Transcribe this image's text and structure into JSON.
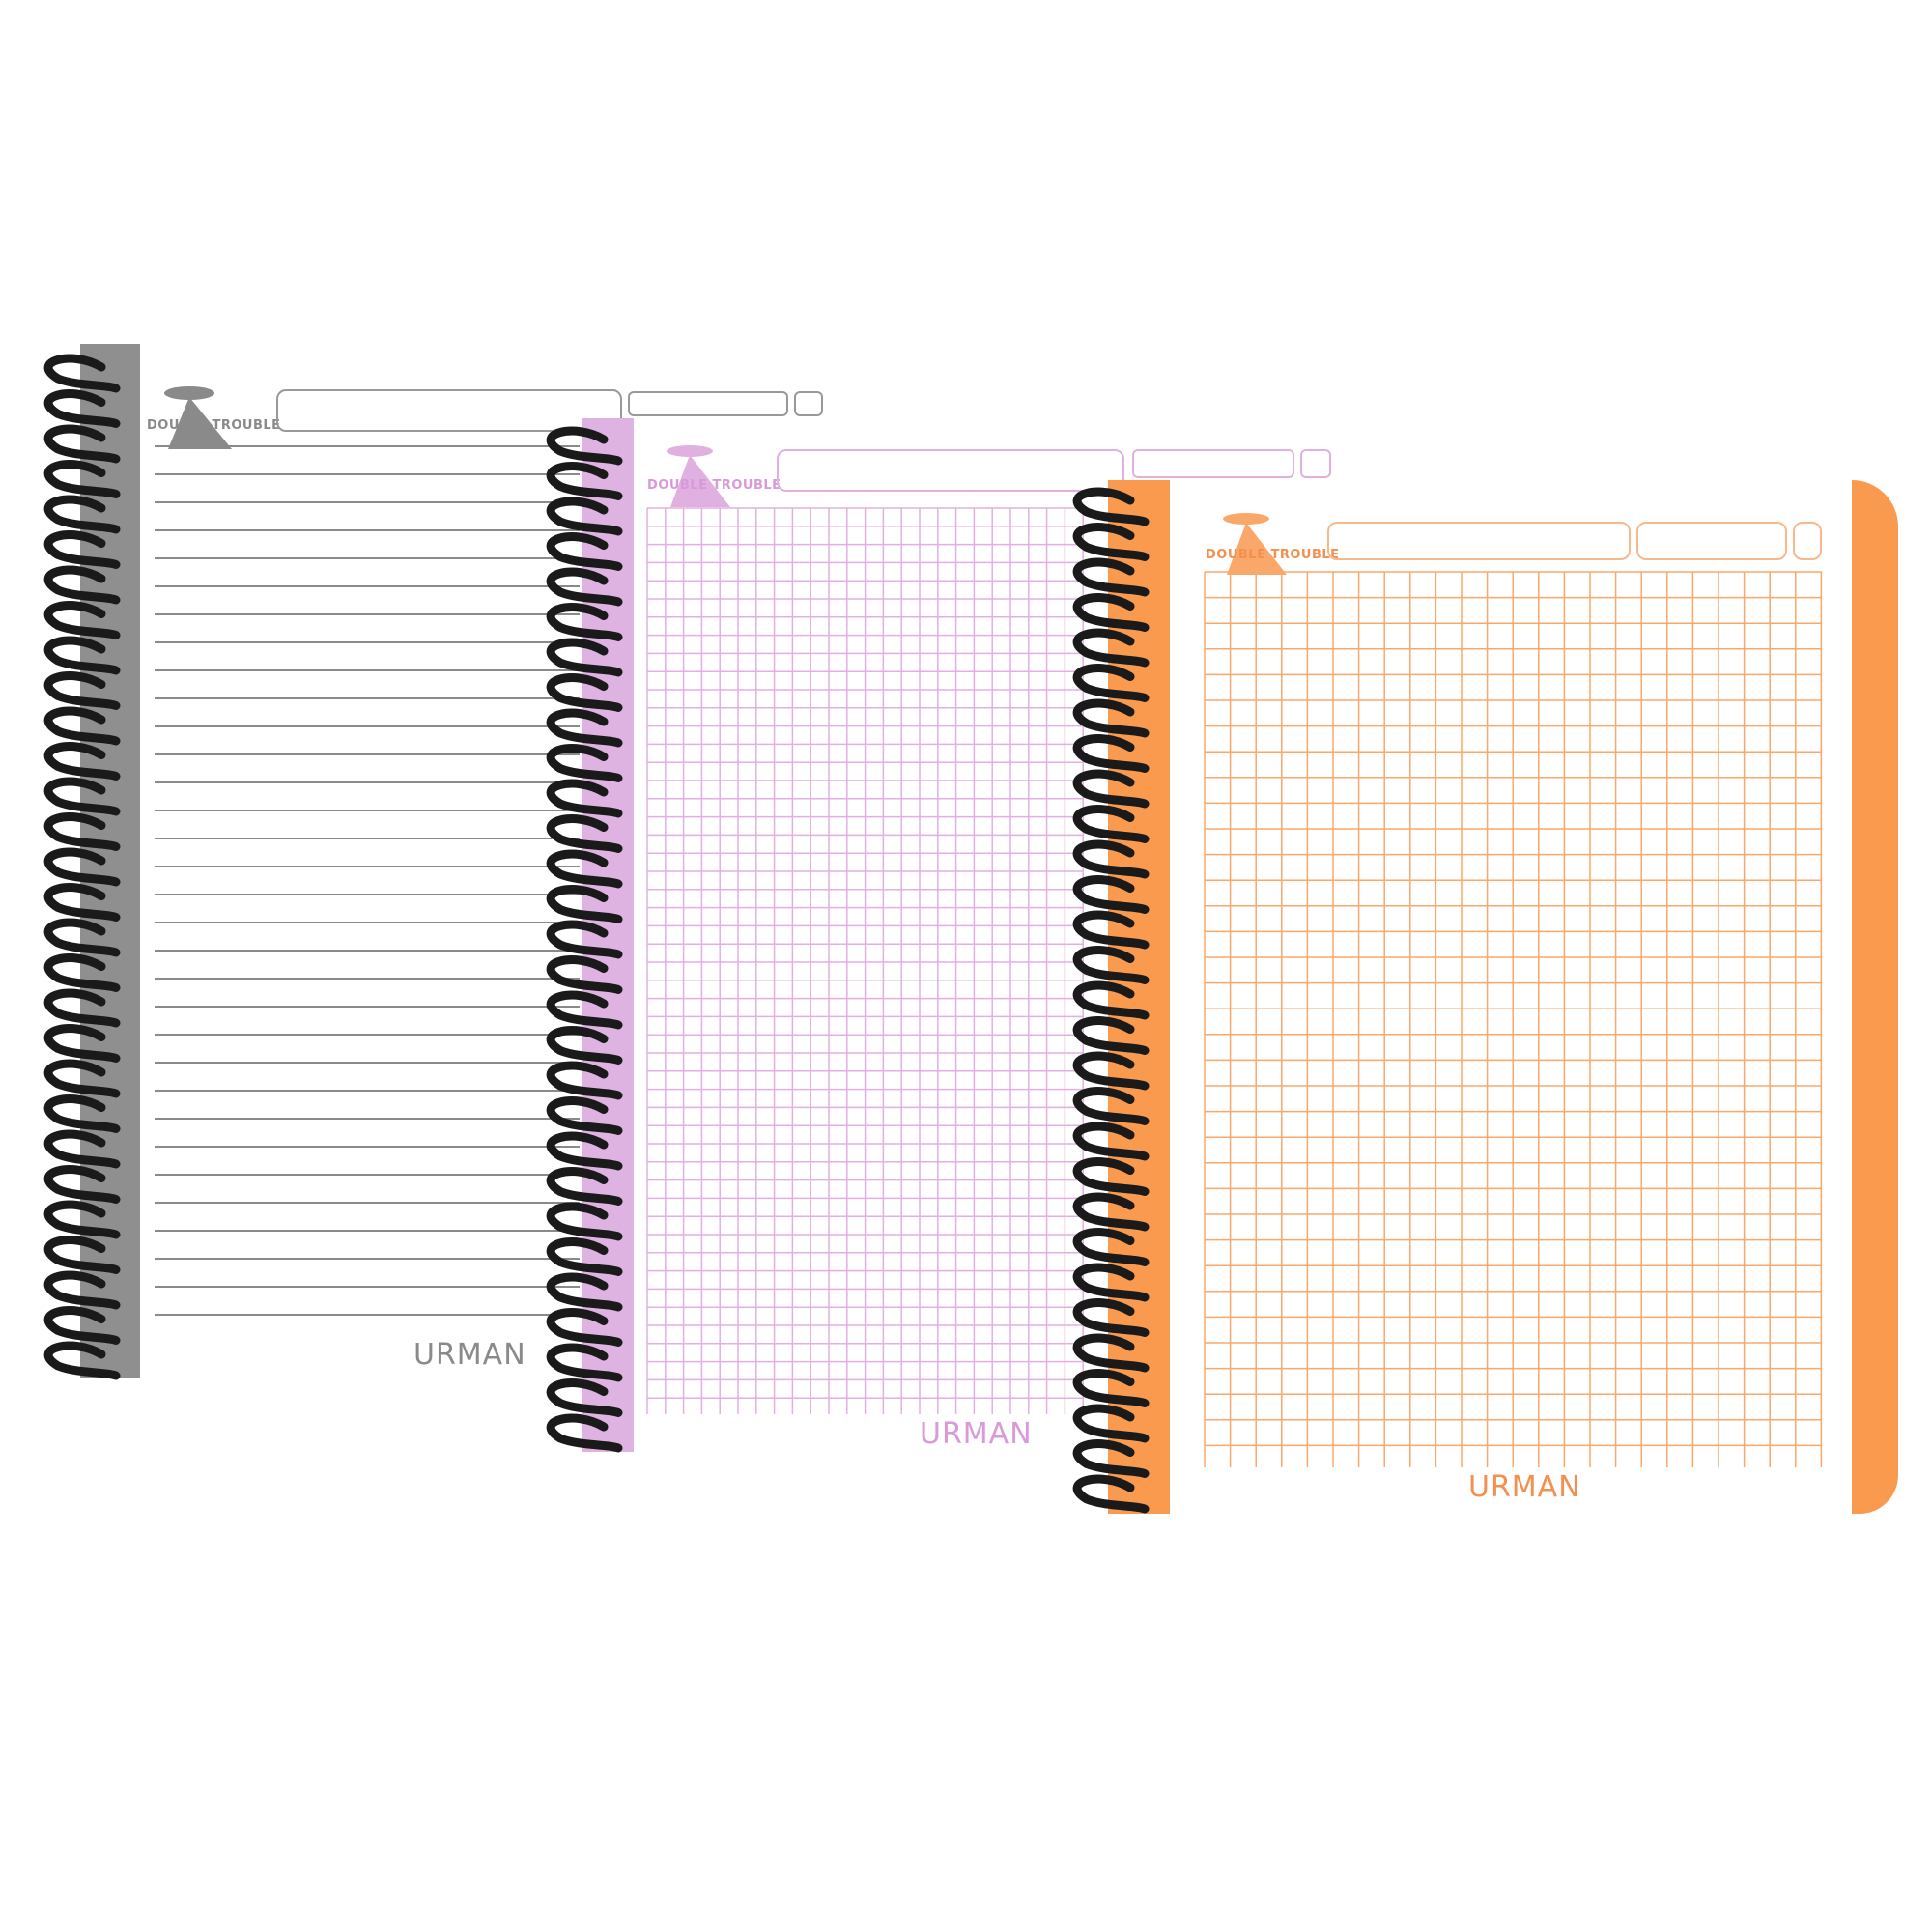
{
  "notebooks": [
    {
      "style": "lined",
      "color": "#8a8a8a",
      "spine_color": "#8f8f8f",
      "logo_text": "DOUBLE TROUBLE",
      "brand": "URMAN"
    },
    {
      "style": "grid",
      "color": "#e0b0e0",
      "spine_color": "#deb3e2",
      "logo_text": "DOUBLE TROUBLE",
      "brand": "URMAN"
    },
    {
      "style": "grid",
      "color": "#f9a86a",
      "spine_color": "#f99a4f",
      "logo_text": "DOUBLE TROUBLE",
      "brand": "URMAN"
    }
  ],
  "spiral_color": "#1a1a1a"
}
